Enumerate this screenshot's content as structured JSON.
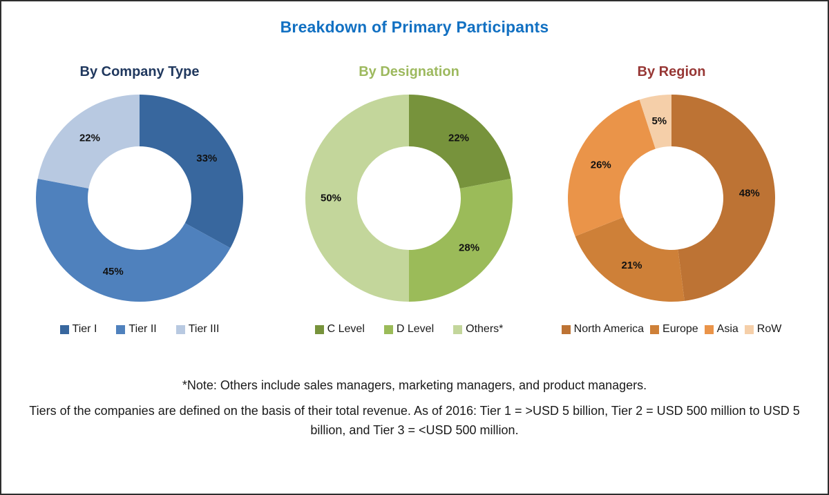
{
  "page": {
    "title": "Breakdown of Primary Participants",
    "title_color": "#1170C2",
    "note_line1": "*Note: Others include sales managers, marketing managers, and product managers.",
    "note_line2": "Tiers of the companies are defined on the basis of their total revenue. As of 2016: Tier 1 = >USD 5 billion, Tier 2 = USD 500 million to USD 5 billion, and Tier 3 = <USD 500 million."
  },
  "chart_data": [
    {
      "type": "pie",
      "variant": "donut",
      "hole_ratio": 0.5,
      "start_angle_deg": 0,
      "direction": "clockwise",
      "legend_position": "bottom",
      "title": "By Company Type",
      "title_color": "#20385E",
      "series": [
        {
          "label": "Tier I",
          "value": 33,
          "value_label": "33%",
          "color": "#38679E"
        },
        {
          "label": "Tier II",
          "value": 45,
          "value_label": "45%",
          "color": "#4F81BD"
        },
        {
          "label": "Tier III",
          "value": 22,
          "value_label": "22%",
          "color": "#B8C9E1"
        }
      ]
    },
    {
      "type": "pie",
      "variant": "donut",
      "hole_ratio": 0.5,
      "start_angle_deg": 0,
      "direction": "clockwise",
      "legend_position": "bottom",
      "title": "By Designation",
      "title_color": "#9DB95E",
      "series": [
        {
          "label": "C Level",
          "value": 22,
          "value_label": "22%",
          "color": "#77933C"
        },
        {
          "label": "D Level",
          "value": 28,
          "value_label": "28%",
          "color": "#9BBB59"
        },
        {
          "label": "Others*",
          "value": 50,
          "value_label": "50%",
          "color": "#C3D69B"
        }
      ]
    },
    {
      "type": "pie",
      "variant": "donut",
      "hole_ratio": 0.5,
      "start_angle_deg": 0,
      "direction": "clockwise",
      "legend_position": "bottom",
      "title": "By Region",
      "title_color": "#973735",
      "series": [
        {
          "label": "North America",
          "value": 48,
          "value_label": "48%",
          "color": "#BD7334"
        },
        {
          "label": "Europe",
          "value": 21,
          "value_label": "21%",
          "color": "#CE8038"
        },
        {
          "label": "Asia",
          "value": 26,
          "value_label": "26%",
          "color": "#EA9449"
        },
        {
          "label": "RoW",
          "value": 5,
          "value_label": "5%",
          "color": "#F5CFA9"
        }
      ]
    }
  ]
}
